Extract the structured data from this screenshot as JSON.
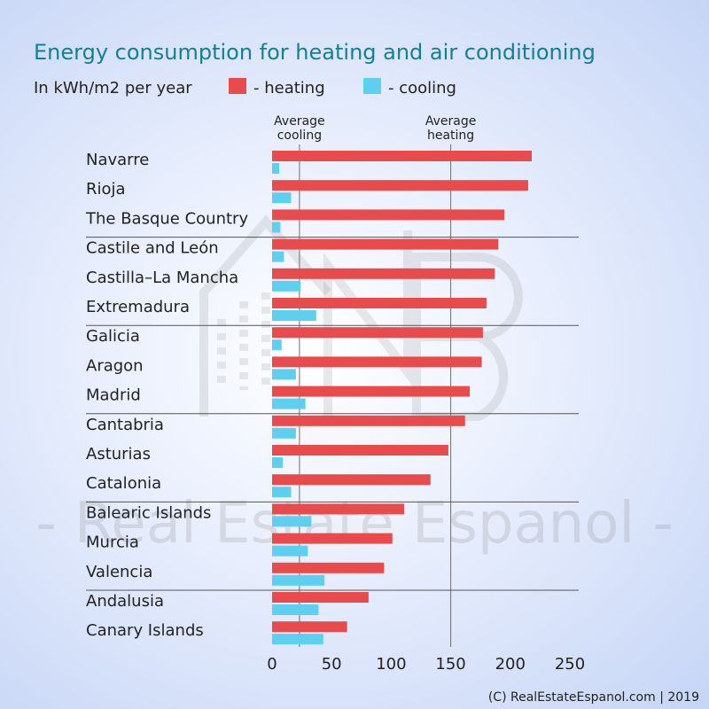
{
  "chart_data": {
    "type": "bar",
    "orientation": "horizontal",
    "title": "Energy consumption for heating and air conditioning",
    "subtitle": "In kWh/m2 per year",
    "categories": [
      "Navarre",
      "Rioja",
      "The Basque Country",
      "Castile and León",
      "Castilla–La Mancha",
      "Extremadura",
      "Galicia",
      "Aragon",
      "Madrid",
      "Cantabria",
      "Asturias",
      "Catalonia",
      "Balearic Islands",
      "Murcia",
      "Valencia",
      "Andalusia",
      "Canary Islands"
    ],
    "series": [
      {
        "name": "- heating",
        "color": "#e84b4b",
        "values": [
          218,
          215,
          195,
          190,
          187,
          180,
          177,
          176,
          166,
          162,
          148,
          133,
          111,
          101,
          94,
          81,
          63
        ]
      },
      {
        "name": "- cooling",
        "color": "#5ecfee",
        "values": [
          6,
          16,
          7,
          10,
          24,
          37,
          8,
          20,
          28,
          20,
          9,
          16,
          33,
          30,
          44,
          39,
          43
        ]
      }
    ],
    "reference_lines": [
      {
        "label": [
          "Average",
          "cooling"
        ],
        "value": 23
      },
      {
        "label": [
          "Average",
          "heating"
        ],
        "value": 150
      }
    ],
    "xlim": [
      0,
      250
    ],
    "xticks": [
      "0",
      "50",
      "100",
      "150",
      "200",
      "250"
    ],
    "group_separators_after": [
      2,
      5,
      8,
      11,
      14
    ],
    "legend_position": "top"
  },
  "watermark": {
    "text": "- Real Estate Espanol -"
  },
  "footer": {
    "copyright": "(C) RealEstateEspanol.com | 2019"
  }
}
